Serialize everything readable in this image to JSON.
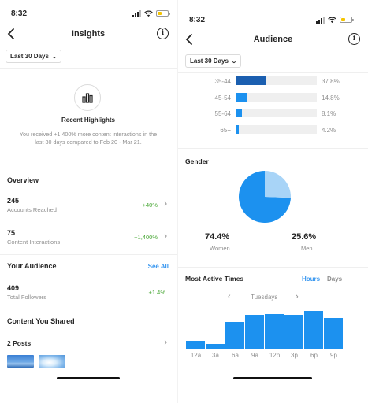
{
  "left": {
    "status_time": "8:32",
    "title": "Insights",
    "range": "Last 30 Days",
    "highlights": {
      "title": "Recent Highlights",
      "text": "You received +1,400% more content interactions in the last 30 days compared to Feb 20 - Mar 21."
    },
    "overview": {
      "heading": "Overview",
      "metrics": [
        {
          "value": "245",
          "label": "Accounts Reached",
          "delta": "+40%"
        },
        {
          "value": "75",
          "label": "Content Interactions",
          "delta": "+1,400%"
        }
      ]
    },
    "audience": {
      "heading": "Your Audience",
      "see_all": "See All",
      "value": "409",
      "label": "Total Followers",
      "delta": "+1.4%"
    },
    "content": {
      "heading": "Content You Shared",
      "posts": "2 Posts"
    }
  },
  "right": {
    "status_time": "8:32",
    "title": "Audience",
    "range": "Last 30 Days",
    "age_groups": [
      {
        "label": "35-44",
        "pct": "37.8%",
        "value": 37.8,
        "dark": true
      },
      {
        "label": "45-54",
        "pct": "14.8%",
        "value": 14.8,
        "dark": false
      },
      {
        "label": "55-64",
        "pct": "8.1%",
        "value": 8.1,
        "dark": false
      },
      {
        "label": "65+",
        "pct": "4.2%",
        "value": 4.2,
        "dark": false
      }
    ],
    "gender": {
      "heading": "Gender",
      "women_pct": "74.4%",
      "women_label": "Women",
      "men_pct": "25.6%",
      "men_label": "Men",
      "women_value": 74.4,
      "men_value": 25.6
    },
    "active_times": {
      "heading": "Most Active Times",
      "tab_hours": "Hours",
      "tab_days": "Days",
      "day": "Tuesdays",
      "ticks": [
        "12a",
        "3a",
        "6a",
        "9a",
        "12p",
        "3p",
        "6p",
        "9p"
      ],
      "relative_activity": [
        0.2,
        0.12,
        0.7,
        0.9,
        0.92,
        0.9,
        1.0,
        0.82
      ]
    }
  },
  "colors": {
    "accent_blue": "#3897f0",
    "growth_green": "#4aa837",
    "chart_blue": "#1c91ef",
    "pie_light": "#a8d4f7",
    "age_dark": "#1b5fb0"
  }
}
